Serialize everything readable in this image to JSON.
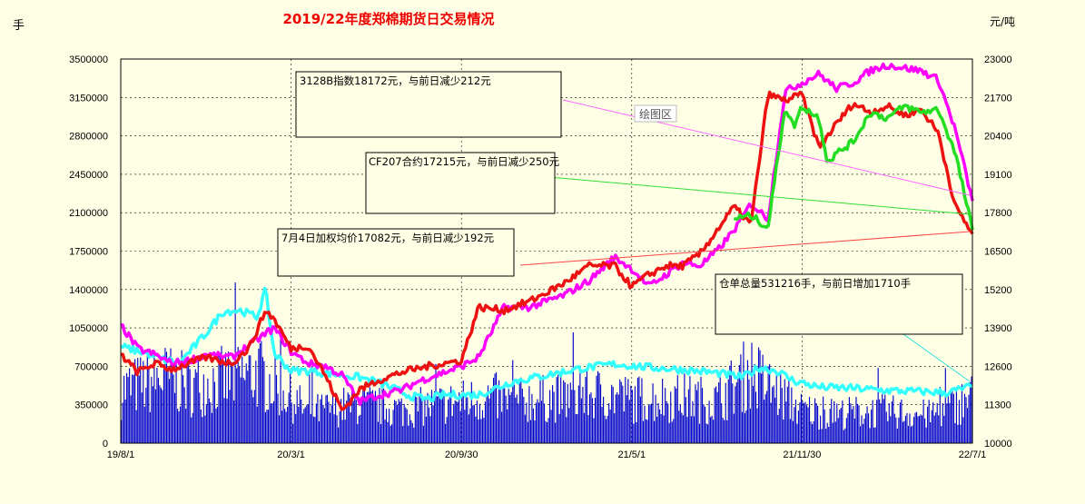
{
  "chart_data": {
    "type": "bar+line",
    "title": "2019/22年度郑棉期货日交易情况",
    "left_unit": "手",
    "right_unit": "元/吨",
    "plot_area_label": "绘图区",
    "left_axis": {
      "min": 0,
      "max": 3500000,
      "ticks": [
        0,
        350000,
        700000,
        1050000,
        1400000,
        1750000,
        2100000,
        2450000,
        2800000,
        3150000,
        3500000
      ]
    },
    "right_axis": {
      "min": 10000,
      "max": 23000,
      "ticks": [
        10000,
        11300,
        12600,
        13900,
        15200,
        16500,
        17800,
        19100,
        20400,
        21700,
        23000
      ]
    },
    "x_tick_labels": [
      "19/8/1",
      "20/3/1",
      "20/9/30",
      "21/5/1",
      "21/11/30",
      "22/7/1"
    ],
    "annotations": [
      "3128B指数18172元，与前日减少212元",
      "CF207合约17215元，与前日减少250元",
      "7月4日加权均价17082元，与前日减少192元",
      "仓单总量531216手，与前日增加1710手"
    ],
    "series": [
      {
        "role": "bars",
        "axis": "left",
        "color": "#0000cc",
        "x": [
          0,
          0.05,
          0.08,
          0.14,
          0.16,
          0.19,
          0.22,
          0.28,
          0.33,
          0.38,
          0.42,
          0.44,
          0.46,
          0.52,
          0.56,
          0.6,
          0.66,
          0.7,
          0.74,
          0.76,
          0.8,
          0.84,
          0.86,
          0.9,
          0.95,
          1
        ],
        "values": [
          600000,
          750000,
          650000,
          750000,
          800000,
          600000,
          350000,
          450000,
          380000,
          450000,
          500000,
          520000,
          480000,
          520000,
          560000,
          500000,
          520000,
          480000,
          820000,
          650000,
          380000,
          330000,
          350000,
          360000,
          320000,
          520000
        ]
      },
      {
        "role": "line",
        "axis": "left",
        "color": "#33ffff",
        "x": [
          0,
          0.03,
          0.05,
          0.07,
          0.1,
          0.12,
          0.14,
          0.16,
          0.17,
          0.18,
          0.2,
          0.22,
          0.25,
          0.28,
          0.3,
          0.32,
          0.34,
          0.36,
          0.38,
          0.4,
          0.42,
          0.46,
          0.5,
          0.54,
          0.58,
          0.62,
          0.66,
          0.7,
          0.73,
          0.75,
          0.77,
          0.79,
          0.82,
          0.86,
          0.9,
          0.94,
          0.97,
          1
        ],
        "values": [
          880000,
          820000,
          760000,
          740000,
          1000000,
          1200000,
          1210000,
          1150000,
          1400000,
          820000,
          660000,
          660000,
          630000,
          600000,
          560000,
          500000,
          430000,
          400000,
          440000,
          440000,
          440000,
          560000,
          620000,
          680000,
          720000,
          690000,
          670000,
          640000,
          600000,
          690000,
          660000,
          570000,
          510000,
          500000,
          480000,
          470000,
          460000,
          520000
        ]
      },
      {
        "role": "line",
        "axis": "right",
        "color": "#ff00ff",
        "x": [
          0,
          0.02,
          0.04,
          0.06,
          0.08,
          0.1,
          0.13,
          0.16,
          0.18,
          0.2,
          0.22,
          0.24,
          0.26,
          0.28,
          0.3,
          0.33,
          0.35,
          0.37,
          0.4,
          0.42,
          0.45,
          0.48,
          0.52,
          0.55,
          0.58,
          0.6,
          0.62,
          0.64,
          0.66,
          0.68,
          0.7,
          0.72,
          0.74,
          0.76,
          0.78,
          0.8,
          0.82,
          0.84,
          0.86,
          0.88,
          0.9,
          0.92,
          0.94,
          0.96,
          0.98,
          1
        ],
        "values": [
          14000,
          13200,
          13000,
          12700,
          12800,
          13000,
          12900,
          13500,
          13900,
          13100,
          12700,
          12600,
          12300,
          11400,
          11600,
          11800,
          12100,
          12300,
          12600,
          12900,
          14600,
          14600,
          15000,
          15500,
          16300,
          15900,
          15300,
          15700,
          16100,
          16000,
          16500,
          17200,
          18100,
          17600,
          21900,
          22200,
          22500,
          22000,
          22200,
          22600,
          22800,
          22700,
          22600,
          22300,
          20600,
          18200
        ]
      },
      {
        "role": "line",
        "axis": "right",
        "color": "#ee1111",
        "x": [
          0,
          0.02,
          0.04,
          0.06,
          0.08,
          0.1,
          0.13,
          0.15,
          0.16,
          0.17,
          0.18,
          0.2,
          0.22,
          0.24,
          0.26,
          0.28,
          0.3,
          0.33,
          0.36,
          0.4,
          0.42,
          0.45,
          0.48,
          0.52,
          0.55,
          0.58,
          0.6,
          0.62,
          0.64,
          0.66,
          0.68,
          0.7,
          0.72,
          0.74,
          0.76,
          0.78,
          0.8,
          0.82,
          0.84,
          0.86,
          0.88,
          0.9,
          0.92,
          0.94,
          0.96,
          0.98,
          1
        ],
        "values": [
          13000,
          12400,
          12700,
          12500,
          12700,
          12900,
          12700,
          13200,
          13800,
          14500,
          14200,
          13200,
          13300,
          12300,
          11100,
          11800,
          12100,
          12400,
          12600,
          12800,
          14600,
          14500,
          14800,
          15400,
          16000,
          16000,
          15300,
          15700,
          16000,
          16000,
          16400,
          17200,
          18000,
          17400,
          21800,
          21600,
          21800,
          20000,
          20800,
          21500,
          21200,
          21400,
          21100,
          21300,
          20500,
          18000,
          17082
        ]
      },
      {
        "role": "line",
        "axis": "right",
        "color": "#22dd22",
        "x": [
          0.72,
          0.74,
          0.76,
          0.78,
          0.79,
          0.8,
          0.82,
          0.83,
          0.84,
          0.86,
          0.88,
          0.9,
          0.92,
          0.94,
          0.96,
          0.98,
          1
        ],
        "values": [
          17600,
          17700,
          17300,
          21400,
          20700,
          21400,
          21000,
          19500,
          19800,
          20200,
          21200,
          21000,
          21400,
          21200,
          21300,
          19800,
          17215
        ]
      }
    ]
  }
}
